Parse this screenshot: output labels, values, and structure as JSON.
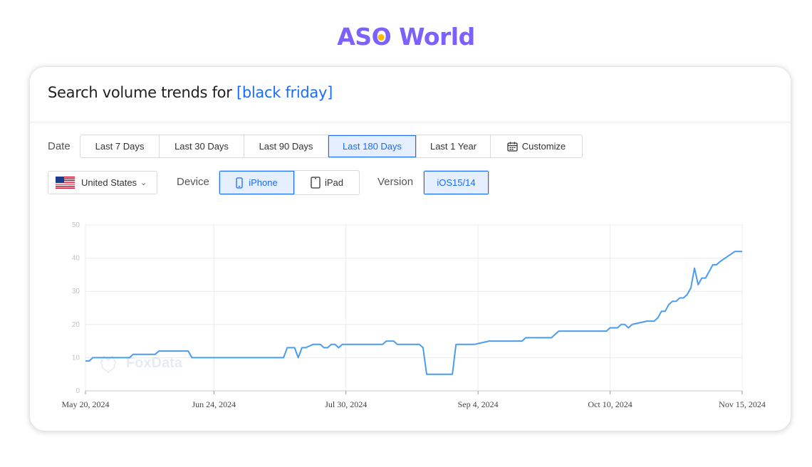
{
  "brand": {
    "part1": "AS",
    "part2": "O",
    "part3": " World"
  },
  "header": {
    "title_prefix": "Search volume trends for ",
    "keyword": "[black friday]"
  },
  "filters": {
    "date_label": "Date",
    "date_options": [
      "Last 7 Days",
      "Last 30 Days",
      "Last 90 Days",
      "Last 180 Days",
      "Last 1 Year",
      "Customize"
    ],
    "date_selected": "Last 180 Days",
    "country": "United States",
    "device_label": "Device",
    "devices": [
      "iPhone",
      "iPad"
    ],
    "device_selected": "iPhone",
    "version_label": "Version",
    "version": "iOS15/14"
  },
  "icons": {
    "calendar": "calendar-icon",
    "phone": "phone-icon",
    "tablet": "tablet-icon",
    "flag": "us-flag-icon",
    "chevron": "chevron-down-icon"
  },
  "colors": {
    "brand": "#7b61ff",
    "brand_dot": "#ffb800",
    "accent": "#1a6cff",
    "line": "#4a9cf0"
  },
  "watermark": "FoxData",
  "chart_data": {
    "type": "line",
    "xlabel": "",
    "ylabel": "",
    "ylim": [
      0,
      50
    ],
    "yticks": [
      0,
      10,
      20,
      30,
      40,
      50
    ],
    "xlim": [
      "2024-05-20",
      "2024-11-15"
    ],
    "xtick_labels": [
      "May 20, 2024",
      "Jun 24, 2024",
      "Jul 30, 2024",
      "Sep 4, 2024",
      "Oct 10, 2024",
      "Nov 15, 2024"
    ],
    "xtick_dates": [
      "2024-05-20",
      "2024-06-24",
      "2024-07-30",
      "2024-09-04",
      "2024-10-10",
      "2024-11-15"
    ],
    "grid": true,
    "series": [
      {
        "x": [
          "2024-05-20",
          "2024-05-21",
          "2024-05-22",
          "2024-05-24",
          "2024-06-01",
          "2024-06-02",
          "2024-06-04",
          "2024-06-08",
          "2024-06-09",
          "2024-06-11",
          "2024-06-17",
          "2024-06-18",
          "2024-07-13",
          "2024-07-14",
          "2024-07-16",
          "2024-07-17",
          "2024-07-18",
          "2024-07-19",
          "2024-07-21",
          "2024-07-23",
          "2024-07-24",
          "2024-07-25",
          "2024-07-26",
          "2024-07-27",
          "2024-07-28",
          "2024-07-29",
          "2024-08-09",
          "2024-08-10",
          "2024-08-12",
          "2024-08-13",
          "2024-08-19",
          "2024-08-20",
          "2024-08-21",
          "2024-08-22",
          "2024-08-28",
          "2024-08-29",
          "2024-09-02",
          "2024-09-03",
          "2024-09-07",
          "2024-09-08",
          "2024-09-16",
          "2024-09-17",
          "2024-09-23",
          "2024-09-24",
          "2024-09-25",
          "2024-09-26",
          "2024-10-06",
          "2024-10-07",
          "2024-10-09",
          "2024-10-10",
          "2024-10-11",
          "2024-10-12",
          "2024-10-13",
          "2024-10-14",
          "2024-10-15",
          "2024-10-16",
          "2024-10-20",
          "2024-10-21",
          "2024-10-22",
          "2024-10-23",
          "2024-10-24",
          "2024-10-25",
          "2024-10-26",
          "2024-10-27",
          "2024-10-28",
          "2024-10-29",
          "2024-10-30",
          "2024-10-31",
          "2024-11-01",
          "2024-11-02",
          "2024-11-03",
          "2024-11-04",
          "2024-11-05",
          "2024-11-07",
          "2024-11-08",
          "2024-11-09",
          "2024-11-13",
          "2024-11-14",
          "2024-11-15"
        ],
        "y": [
          9,
          9,
          10,
          10,
          10,
          11,
          11,
          11,
          12,
          12,
          12,
          10,
          10,
          13,
          13,
          10,
          13,
          13,
          14,
          14,
          13,
          13,
          14,
          14,
          13,
          14,
          14,
          15,
          15,
          14,
          14,
          13,
          5,
          5,
          5,
          14,
          14,
          14,
          15,
          15,
          15,
          16,
          16,
          16,
          17,
          18,
          18,
          18,
          18,
          19,
          19,
          19,
          20,
          20,
          19,
          20,
          21,
          21,
          21,
          22,
          24,
          24,
          26,
          27,
          27,
          28,
          28,
          29,
          31,
          37,
          32,
          34,
          34,
          38,
          38,
          39,
          42,
          42,
          42
        ]
      }
    ]
  }
}
